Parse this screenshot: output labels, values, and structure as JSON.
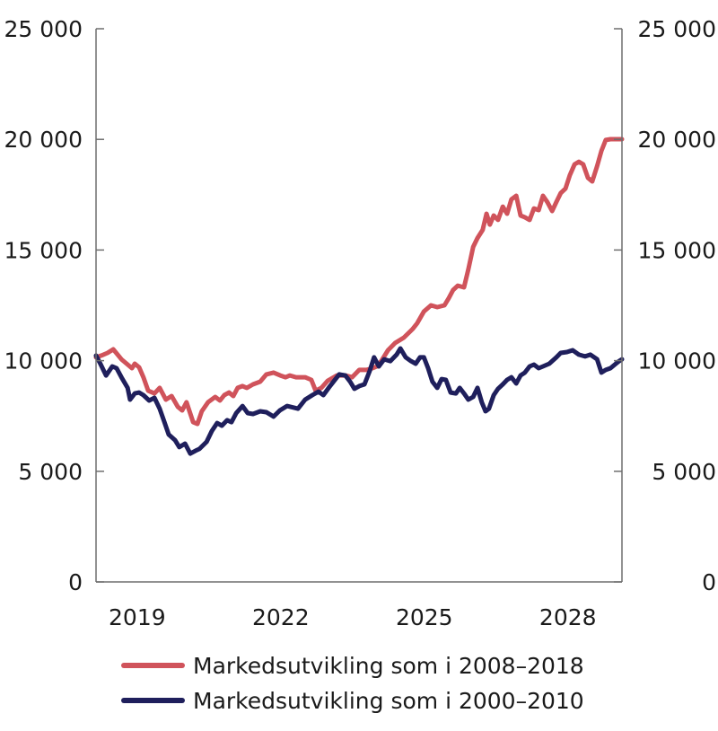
{
  "chart_data": {
    "type": "line",
    "title": "",
    "xlabel": "",
    "ylabel": "",
    "xlim": [
      2018.64,
      2029.63
    ],
    "ylim": [
      0,
      25000
    ],
    "grid": false,
    "y_ticks": [
      0,
      5000,
      10000,
      15000,
      20000,
      25000
    ],
    "y_tick_labels": [
      "0",
      "5 000",
      "10 000",
      "15 000",
      "20 000",
      "25 000"
    ],
    "y_axis_sides": [
      "left",
      "right"
    ],
    "x_ticks": [
      2019,
      2022,
      2025,
      2028
    ],
    "x_tick_labels": [
      "2019",
      "2022",
      "2025",
      "2028"
    ],
    "legend_position": "bottom",
    "series": [
      {
        "name": "Markedsutvikling som i 2008–2018",
        "color": "#d0535b",
        "x": [
          2018.64,
          2018.75,
          2018.88,
          2019.0,
          2019.17,
          2019.28,
          2019.39,
          2019.45,
          2019.54,
          2019.63,
          2019.73,
          2019.86,
          2019.97,
          2020.1,
          2020.22,
          2020.35,
          2020.44,
          2020.53,
          2020.67,
          2020.76,
          2020.85,
          2020.98,
          2021.13,
          2021.23,
          2021.32,
          2021.42,
          2021.51,
          2021.6,
          2021.7,
          2021.79,
          2021.92,
          2022.07,
          2022.2,
          2022.35,
          2022.49,
          2022.6,
          2022.69,
          2022.82,
          2023.01,
          2023.14,
          2023.23,
          2023.35,
          2023.48,
          2023.67,
          2023.85,
          2023.99,
          2024.14,
          2024.29,
          2024.42,
          2024.51,
          2024.6,
          2024.74,
          2024.89,
          2025.07,
          2025.26,
          2025.35,
          2025.49,
          2025.64,
          2025.77,
          2025.92,
          2026.01,
          2026.1,
          2026.2,
          2026.33,
          2026.42,
          2026.52,
          2026.61,
          2026.72,
          2026.8,
          2026.87,
          2026.95,
          2027.04,
          2027.14,
          2027.23,
          2027.32,
          2027.42,
          2027.51,
          2027.6,
          2027.7,
          2027.79,
          2027.89,
          2027.98,
          2028.07,
          2028.17,
          2028.26,
          2028.35,
          2028.45,
          2028.54,
          2028.64,
          2028.73,
          2028.82,
          2028.92,
          2029.01,
          2029.11,
          2029.2,
          2029.29,
          2029.39,
          2029.63
        ],
        "values": [
          10150,
          10230,
          10350,
          10510,
          10060,
          9860,
          9660,
          9860,
          9700,
          9250,
          8640,
          8520,
          8770,
          8240,
          8400,
          7910,
          7750,
          8120,
          7220,
          7140,
          7710,
          8120,
          8360,
          8200,
          8440,
          8560,
          8400,
          8770,
          8850,
          8770,
          8930,
          9050,
          9380,
          9460,
          9330,
          9250,
          9330,
          9250,
          9250,
          9130,
          8640,
          8770,
          9090,
          9330,
          9330,
          9250,
          9580,
          9580,
          9660,
          9740,
          9980,
          10470,
          10800,
          11040,
          11440,
          11690,
          12220,
          12500,
          12420,
          12500,
          12820,
          13190,
          13390,
          13310,
          14120,
          15140,
          15540,
          15910,
          16640,
          16150,
          16560,
          16360,
          16960,
          16640,
          17290,
          17450,
          16560,
          16480,
          16360,
          16880,
          16800,
          17450,
          17170,
          16760,
          17170,
          17570,
          17780,
          18380,
          18870,
          18990,
          18870,
          18260,
          18100,
          18790,
          19480,
          19970,
          20010,
          20010
        ]
      },
      {
        "name": "Markedsutvikling som i 2000–2010",
        "color": "#1f1f5c",
        "x": [
          2018.64,
          2018.73,
          2018.85,
          2018.98,
          2019.07,
          2019.17,
          2019.3,
          2019.35,
          2019.45,
          2019.54,
          2019.63,
          2019.75,
          2019.86,
          2019.97,
          2020.07,
          2020.16,
          2020.29,
          2020.38,
          2020.5,
          2020.61,
          2020.72,
          2020.8,
          2020.95,
          2021.06,
          2021.17,
          2021.27,
          2021.38,
          2021.47,
          2021.57,
          2021.7,
          2021.81,
          2021.92,
          2022.07,
          2022.2,
          2022.35,
          2022.48,
          2022.63,
          2022.86,
          2023.01,
          2023.16,
          2023.29,
          2023.39,
          2023.53,
          2023.72,
          2023.85,
          2023.95,
          2024.04,
          2024.14,
          2024.25,
          2024.36,
          2024.45,
          2024.55,
          2024.66,
          2024.79,
          2024.92,
          2025.0,
          2025.11,
          2025.22,
          2025.32,
          2025.41,
          2025.49,
          2025.58,
          2025.67,
          2025.77,
          2025.86,
          2025.95,
          2026.05,
          2026.16,
          2026.24,
          2026.33,
          2026.42,
          2026.52,
          2026.61,
          2026.7,
          2026.78,
          2026.85,
          2026.95,
          2027.04,
          2027.14,
          2027.23,
          2027.32,
          2027.42,
          2027.51,
          2027.6,
          2027.7,
          2027.79,
          2027.89,
          2027.98,
          2028.11,
          2028.26,
          2028.35,
          2028.48,
          2028.6,
          2028.73,
          2028.86,
          2028.97,
          2029.11,
          2029.2,
          2029.29,
          2029.39,
          2029.48,
          2029.57,
          2029.63
        ],
        "values": [
          10230,
          9860,
          9330,
          9740,
          9660,
          9250,
          8770,
          8240,
          8520,
          8560,
          8440,
          8200,
          8320,
          7830,
          7220,
          6660,
          6410,
          6090,
          6250,
          5800,
          5930,
          6010,
          6330,
          6820,
          7180,
          7060,
          7310,
          7220,
          7630,
          7950,
          7630,
          7590,
          7710,
          7670,
          7470,
          7750,
          7950,
          7830,
          8240,
          8440,
          8600,
          8440,
          8850,
          9380,
          9330,
          9050,
          8730,
          8850,
          8930,
          9540,
          10150,
          9740,
          10060,
          9980,
          10270,
          10550,
          10150,
          9980,
          9860,
          10150,
          10150,
          9660,
          9050,
          8770,
          9170,
          9130,
          8560,
          8520,
          8770,
          8520,
          8240,
          8360,
          8770,
          8120,
          7710,
          7830,
          8440,
          8730,
          8930,
          9130,
          9250,
          8970,
          9330,
          9460,
          9740,
          9820,
          9660,
          9740,
          9860,
          10150,
          10350,
          10390,
          10470,
          10270,
          10190,
          10270,
          10060,
          9460,
          9580,
          9660,
          9820,
          9980,
          10060
        ]
      }
    ]
  }
}
